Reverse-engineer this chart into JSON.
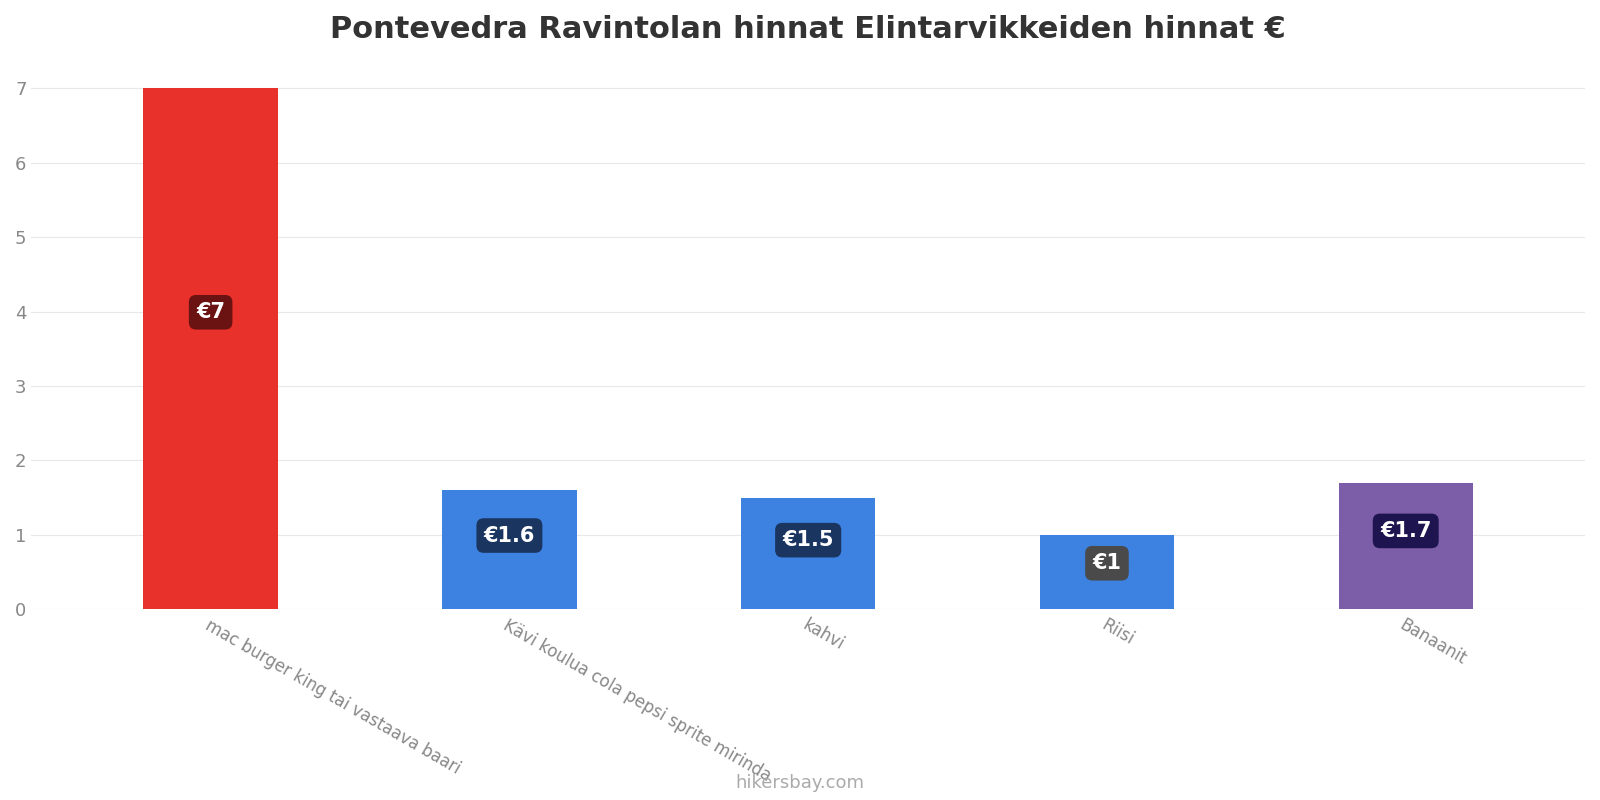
{
  "title": "Pontevedra Ravintolan hinnat Elintarvikkeiden hinnat €",
  "categories": [
    "mac burger king tai vastaava baari",
    "Kävi koulua cola pepsi sprite mirinda",
    "kahvi",
    "Riisi",
    "Banaanit"
  ],
  "values": [
    7,
    1.6,
    1.5,
    1.0,
    1.7
  ],
  "bar_colors": [
    "#e8312a",
    "#3d82e0",
    "#3d82e0",
    "#3d82e0",
    "#7b5ea7"
  ],
  "label_box_colors": [
    "#6b1212",
    "#1a3560",
    "#1a3560",
    "#4a4a4a",
    "#1e1550"
  ],
  "labels": [
    "€7",
    "€1.6",
    "€1.5",
    "€1",
    "€1.7"
  ],
  "ylim": [
    0,
    7.3
  ],
  "yticks": [
    0,
    1,
    2,
    3,
    4,
    5,
    6,
    7
  ],
  "background_color": "#ffffff",
  "title_fontsize": 22,
  "watermark": "hikersbay.com",
  "bar_width": 0.45,
  "label_fontsize": 15
}
